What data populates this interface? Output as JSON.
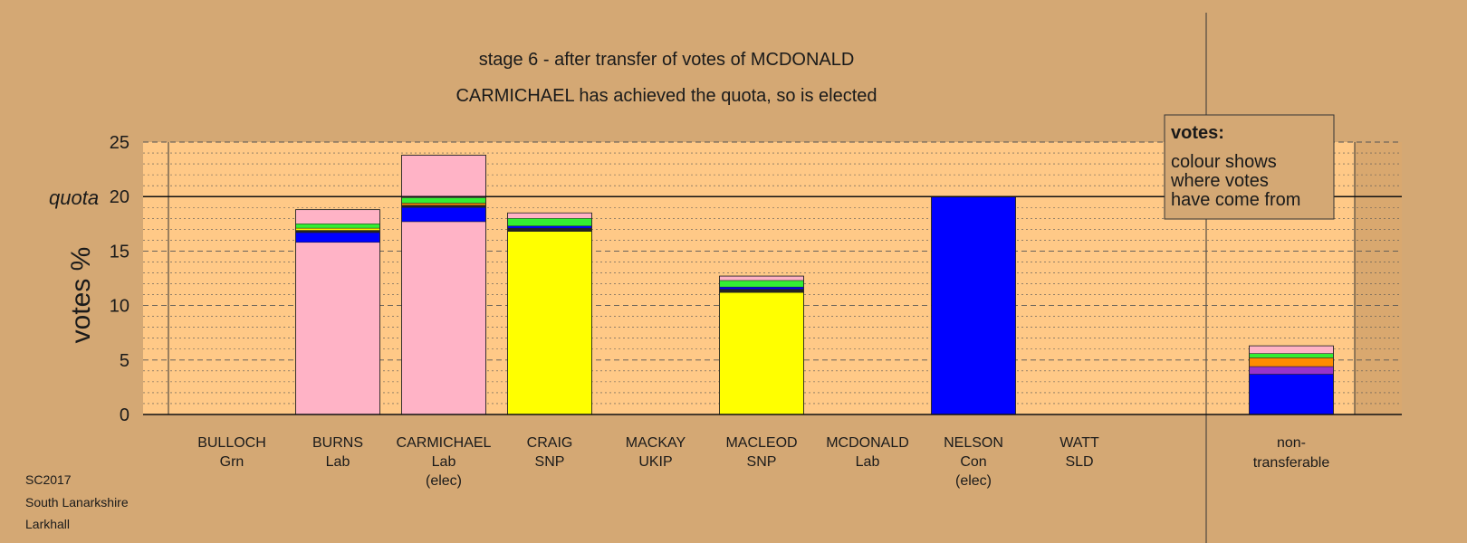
{
  "chart_data": {
    "type": "bar",
    "stacked": true,
    "title": "stage 6 - after transfer of votes of MCDONALD",
    "subtitle": "CARMICHAEL has achieved the quota, so is elected",
    "ylabel": "votes %",
    "ylim": [
      0,
      25
    ],
    "yticks": [
      0,
      5,
      10,
      15,
      20,
      25
    ],
    "quota": 20,
    "quota_label": "quota",
    "grid": true,
    "candidates": [
      {
        "name": "BULLOCH",
        "party": "Grn",
        "status": "",
        "segments": []
      },
      {
        "name": "BURNS",
        "party": "Lab",
        "status": "",
        "segments": [
          {
            "value": 15.8,
            "color": "#ffb3c6"
          },
          {
            "value": 0.9,
            "color": "#0000ff"
          },
          {
            "value": 0.2,
            "color": "#222222"
          },
          {
            "value": 0.2,
            "color": "#ffff00"
          },
          {
            "value": 0.4,
            "color": "#33ee33"
          },
          {
            "value": 1.3,
            "color": "#ffb3c6"
          }
        ]
      },
      {
        "name": "CARMICHAEL",
        "party": "Lab",
        "status": "(elec)",
        "segments": [
          {
            "value": 17.7,
            "color": "#ffb3c6"
          },
          {
            "value": 1.3,
            "color": "#0000ff"
          },
          {
            "value": 0.2,
            "color": "#222222"
          },
          {
            "value": 0.2,
            "color": "#ff8c00"
          },
          {
            "value": 0.5,
            "color": "#33ee33"
          },
          {
            "value": 3.9,
            "color": "#ffb3c6"
          }
        ]
      },
      {
        "name": "CRAIG",
        "party": "SNP",
        "status": "",
        "segments": [
          {
            "value": 16.8,
            "color": "#ffff00"
          },
          {
            "value": 0.3,
            "color": "#222222"
          },
          {
            "value": 0.2,
            "color": "#0000ff"
          },
          {
            "value": 0.7,
            "color": "#33ee33"
          },
          {
            "value": 0.5,
            "color": "#ffb3c6"
          }
        ]
      },
      {
        "name": "MACKAY",
        "party": "UKIP",
        "status": "",
        "segments": []
      },
      {
        "name": "MACLEOD",
        "party": "SNP",
        "status": "",
        "segments": [
          {
            "value": 11.2,
            "color": "#ffff00"
          },
          {
            "value": 0.3,
            "color": "#222222"
          },
          {
            "value": 0.2,
            "color": "#0000ff"
          },
          {
            "value": 0.6,
            "color": "#33ee33"
          },
          {
            "value": 0.4,
            "color": "#ffb3c6"
          }
        ]
      },
      {
        "name": "MCDONALD",
        "party": "Lab",
        "status": "",
        "segments": []
      },
      {
        "name": "NELSON",
        "party": "Con",
        "status": "(elec)",
        "segments": [
          {
            "value": 20,
            "color": "#0000ff"
          }
        ]
      },
      {
        "name": "WATT",
        "party": "SLD",
        "status": "",
        "segments": []
      }
    ],
    "nontransferable": {
      "label_line1": "non-",
      "label_line2": "transferable",
      "segments": [
        {
          "value": 3.7,
          "color": "#0000ff"
        },
        {
          "value": 0.7,
          "color": "#9933cc"
        },
        {
          "value": 0.8,
          "color": "#ff8c00"
        },
        {
          "value": 0.4,
          "color": "#33ee33"
        },
        {
          "value": 0.7,
          "color": "#ffb3c6"
        }
      ]
    },
    "legend": {
      "title": "votes:",
      "lines": [
        "colour shows",
        "where votes",
        "have come from"
      ]
    }
  },
  "footer": {
    "line1": "SC2017",
    "line2": "South Lanarkshire",
    "line3": "Larkhall"
  },
  "colors": {
    "background": "#d4a874",
    "plot_area": "#ffc987",
    "right_area": "#c89a65"
  }
}
